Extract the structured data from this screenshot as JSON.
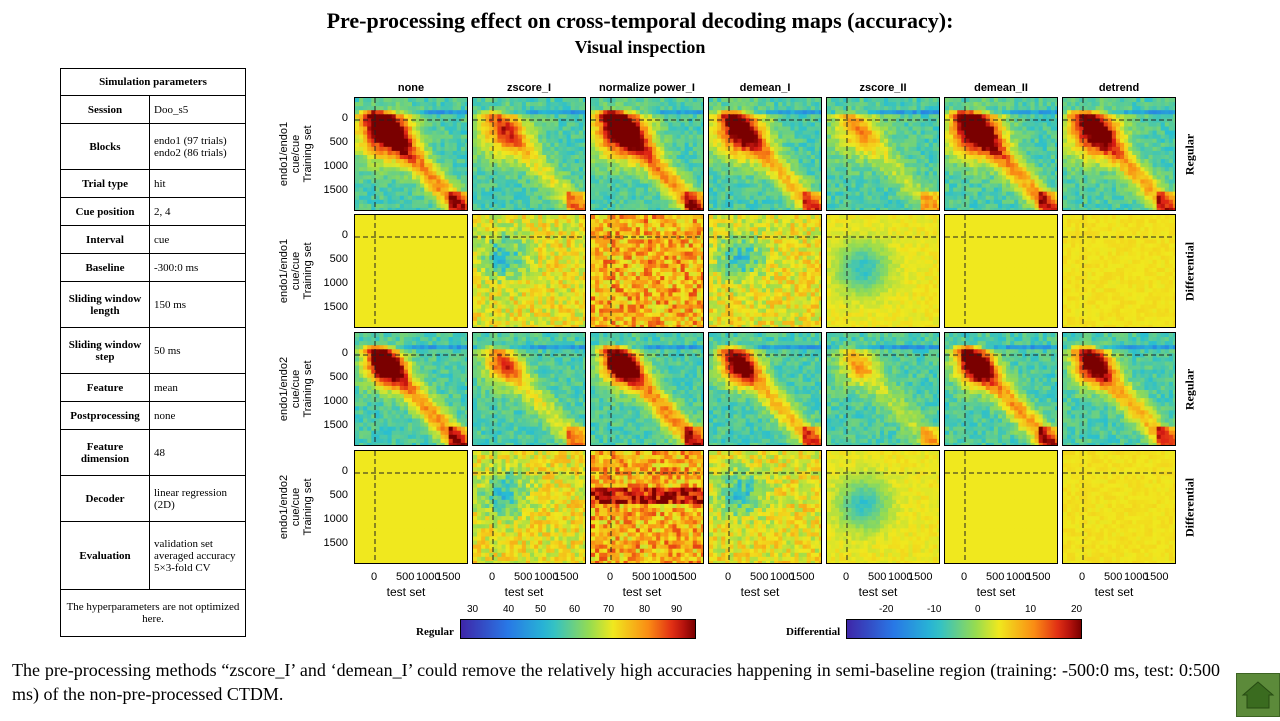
{
  "title": "Pre-processing effect on cross-temporal decoding maps (accuracy):",
  "subtitle": "Visual inspection",
  "params": {
    "header": "Simulation parameters",
    "rows": [
      {
        "k": "Session",
        "v": "Doo_s5"
      },
      {
        "k": "Blocks",
        "v": "endo1 (97 trials) endo2 (86 trials)"
      },
      {
        "k": "Trial type",
        "v": "hit"
      },
      {
        "k": "Cue position",
        "v": "2, 4"
      },
      {
        "k": "Interval",
        "v": "cue"
      },
      {
        "k": "Baseline",
        "v": "-300:0 ms"
      },
      {
        "k": "Sliding window length",
        "v": "150 ms"
      },
      {
        "k": "Sliding window step",
        "v": "50 ms"
      },
      {
        "k": "Feature",
        "v": "mean"
      },
      {
        "k": "Postprocessing",
        "v": "none"
      },
      {
        "k": "Feature dimension",
        "v": "48"
      },
      {
        "k": "Decoder",
        "v": "linear regression (2D)"
      },
      {
        "k": "Evaluation",
        "v": "validation set averaged accuracy 5×3-fold CV"
      }
    ],
    "footer": "The hyperparameters are not optimized here."
  },
  "columns": [
    "none",
    "zscore_I",
    "normalize power_I",
    "demean_I",
    "zscore_II",
    "demean_II",
    "detrend"
  ],
  "rows": [
    {
      "label1": "endo1/endo1",
      "label2": "cue/cue",
      "label3": "Training set",
      "type": "Regular"
    },
    {
      "label1": "endo1/endo1",
      "label2": "cue/cue",
      "label3": "Training set",
      "type": "Differential"
    },
    {
      "label1": "endo1/endo2",
      "label2": "cue/cue",
      "label3": "Training set",
      "type": "Regular"
    },
    {
      "label1": "endo1/endo2",
      "label2": "cue/cue",
      "label3": "Training set",
      "type": "Differential"
    }
  ],
  "yticks": [
    "0",
    "500",
    "1000",
    "1500"
  ],
  "xticks": [
    "0",
    "500",
    "1000",
    "1500"
  ],
  "xlabel": "test set",
  "colorbars": {
    "regular": {
      "name": "Regular",
      "ticks": [
        "30",
        "40",
        "50",
        "60",
        "70",
        "80",
        "90"
      ]
    },
    "differential": {
      "name": "Differential",
      "ticks": [
        "-20",
        "-10",
        "0",
        "10",
        "20"
      ]
    }
  },
  "note": "The pre-processing methods “zscore_I’ and ‘demean_I’ could remove the relatively high accuracies happening in semi-baseline region (training: -500:0 ms, test: 0:500 ms) of the non-pre-processed  CTDM.",
  "colors": {
    "low": "#3b2fa8",
    "mid": "#f0e81e",
    "high": "#7a0000"
  }
}
